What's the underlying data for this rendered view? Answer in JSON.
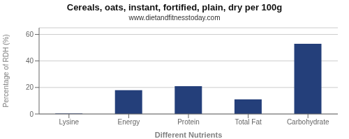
{
  "chart_data": {
    "type": "bar",
    "title": "Cereals, oats, instant, fortified, plain, dry per 100g",
    "subtitle": "www.dietandfitnesstoday.com",
    "xlabel": "Different Nutrients",
    "ylabel": "Percentage of RDH (%)",
    "categories": [
      "Lysine",
      "Energy",
      "Protein",
      "Total Fat",
      "Carbohydrate"
    ],
    "values": [
      0.4,
      18,
      21,
      11,
      53
    ],
    "color": "#243f7a",
    "ylim": [
      0,
      65
    ],
    "yticks": [
      0,
      20,
      40,
      60
    ],
    "grid": true
  }
}
